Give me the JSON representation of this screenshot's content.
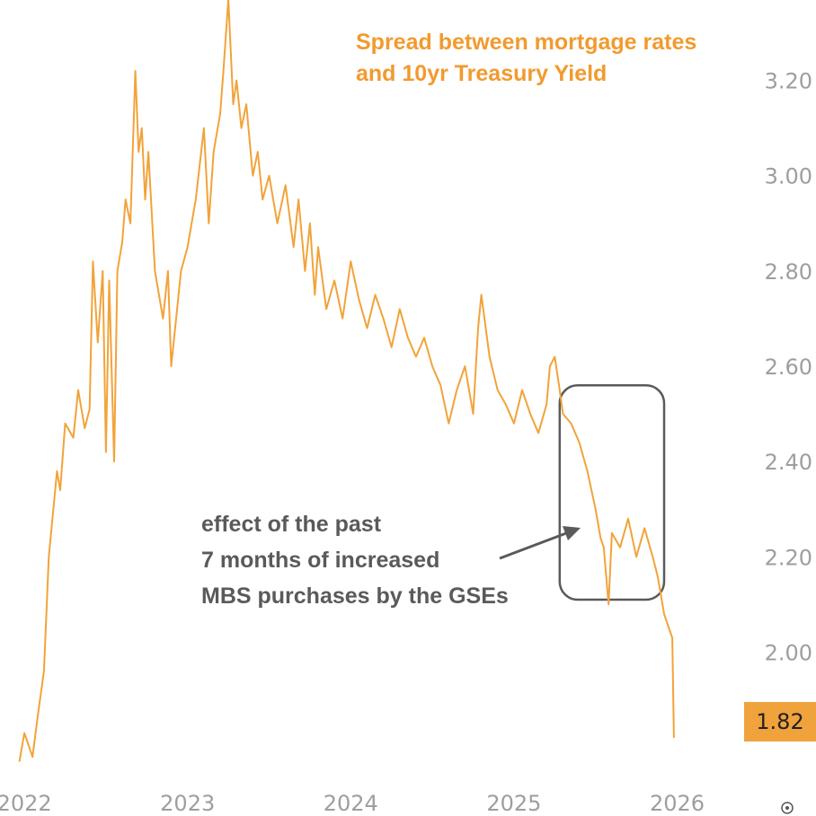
{
  "chart_data": {
    "type": "line",
    "title_lines": [
      "Spread between mortgage rates",
      "and 10yr Treasury Yield"
    ],
    "xlabel": "",
    "ylabel": "",
    "x_ticks": [
      "2022",
      "2023",
      "2024",
      "2025",
      "2026"
    ],
    "y_ticks": [
      "2.00",
      "2.20",
      "2.40",
      "2.60",
      "2.80",
      "3.00",
      "3.20"
    ],
    "ylim": [
      1.72,
      3.35
    ],
    "xlim": [
      2021.95,
      2026.3
    ],
    "grid": false,
    "last_value": "1.82",
    "annotation_lines": [
      "effect of the past",
      "7 months of increased",
      "MBS purchases by the GSEs"
    ],
    "highlight_range": {
      "x": [
        2025.28,
        2025.92
      ],
      "y": [
        2.11,
        2.56
      ]
    },
    "series": [
      {
        "x": [
          2021.97,
          2022.0,
          2022.05,
          2022.08,
          2022.12,
          2022.15,
          2022.2,
          2022.22,
          2022.25,
          2022.3,
          2022.33,
          2022.37,
          2022.4,
          2022.42,
          2022.45,
          2022.48,
          2022.5,
          2022.52,
          2022.55,
          2022.57,
          2022.6,
          2022.62,
          2022.65,
          2022.68,
          2022.7,
          2022.72,
          2022.74,
          2022.76,
          2022.8,
          2022.85,
          2022.88,
          2022.9,
          2022.93,
          2022.96,
          2023.0,
          2023.05,
          2023.1,
          2023.13,
          2023.16,
          2023.2,
          2023.22,
          2023.25,
          2023.28,
          2023.3,
          2023.33,
          2023.36,
          2023.4,
          2023.43,
          2023.46,
          2023.5,
          2023.55,
          2023.6,
          2023.65,
          2023.68,
          2023.72,
          2023.75,
          2023.78,
          2023.8,
          2023.85,
          2023.9,
          2023.95,
          2024.0,
          2024.05,
          2024.1,
          2024.15,
          2024.2,
          2024.25,
          2024.3,
          2024.35,
          2024.4,
          2024.45,
          2024.5,
          2024.55,
          2024.6,
          2024.65,
          2024.7,
          2024.75,
          2024.78,
          2024.8,
          2024.85,
          2024.9,
          2024.95,
          2025.0,
          2025.05,
          2025.1,
          2025.15,
          2025.2,
          2025.22,
          2025.25,
          2025.28,
          2025.3,
          2025.35,
          2025.4,
          2025.45,
          2025.5,
          2025.53,
          2025.55,
          2025.58,
          2025.6,
          2025.65,
          2025.7,
          2025.75,
          2025.8,
          2025.85,
          2025.88,
          2025.9,
          2025.92,
          2025.95,
          2025.97,
          2025.98
        ],
        "values": [
          1.77,
          1.83,
          1.78,
          1.86,
          1.96,
          2.2,
          2.38,
          2.34,
          2.48,
          2.45,
          2.55,
          2.47,
          2.51,
          2.82,
          2.65,
          2.8,
          2.42,
          2.78,
          2.4,
          2.8,
          2.86,
          2.95,
          2.9,
          3.22,
          3.05,
          3.1,
          2.95,
          3.05,
          2.8,
          2.7,
          2.8,
          2.6,
          2.7,
          2.8,
          2.85,
          2.95,
          3.1,
          2.9,
          3.05,
          3.13,
          3.22,
          3.37,
          3.15,
          3.2,
          3.1,
          3.15,
          3.0,
          3.05,
          2.95,
          3.0,
          2.9,
          2.98,
          2.85,
          2.95,
          2.8,
          2.9,
          2.75,
          2.85,
          2.72,
          2.78,
          2.7,
          2.82,
          2.74,
          2.68,
          2.75,
          2.7,
          2.64,
          2.72,
          2.66,
          2.62,
          2.66,
          2.6,
          2.56,
          2.48,
          2.55,
          2.6,
          2.5,
          2.68,
          2.75,
          2.62,
          2.55,
          2.52,
          2.48,
          2.55,
          2.5,
          2.46,
          2.52,
          2.6,
          2.62,
          2.55,
          2.5,
          2.48,
          2.44,
          2.38,
          2.3,
          2.24,
          2.22,
          2.1,
          2.25,
          2.22,
          2.28,
          2.2,
          2.26,
          2.2,
          2.16,
          2.12,
          2.08,
          2.05,
          2.03,
          1.82
        ]
      }
    ]
  },
  "colors": {
    "line": "#f2a33a",
    "title": "#f29a2e",
    "tick": "#9e9e9e",
    "annotation": "#5a5a5a",
    "last_label_bg": "#f0a23c"
  }
}
